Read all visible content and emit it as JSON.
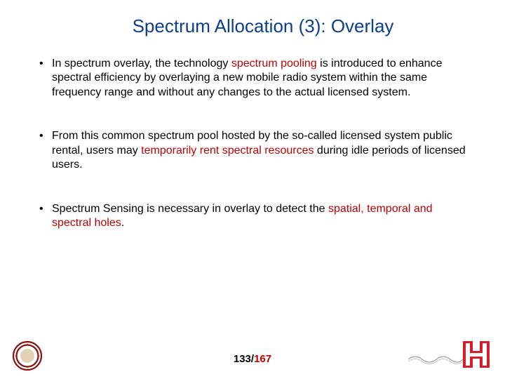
{
  "title": "Spectrum Allocation (3): Overlay",
  "bullets": [
    {
      "segments": [
        {
          "text": "In spectrum overlay, the technology ",
          "hl": false
        },
        {
          "text": "spectrum pooling",
          "hl": true
        },
        {
          "text": "  is introduced to enhance spectral efficiency by overlaying a new mobile radio system within the same frequency range and without any changes to the actual licensed system.",
          "hl": false
        }
      ]
    },
    {
      "segments": [
        {
          "text": "From this common spectrum pool hosted by the so-called licensed system public rental, users may ",
          "hl": false
        },
        {
          "text": "temporarily rent spectral resources ",
          "hl": true
        },
        {
          "text": "during idle periods of licensed users.",
          "hl": false
        }
      ]
    },
    {
      "segments": [
        {
          "text": "Spectrum Sensing is necessary in overlay to detect the ",
          "hl": false
        },
        {
          "text": "spatial, temporal and spectral holes",
          "hl": true
        },
        {
          "text": ".",
          "hl": false
        }
      ]
    }
  ],
  "page": {
    "current": "133",
    "separator": "/",
    "total": "167"
  },
  "colors": {
    "title": "#0b3e8c",
    "highlight": "#c00000",
    "text": "#000000",
    "background": "#ffffff"
  },
  "logos": {
    "left": {
      "name": "university-seal",
      "ring_color": "#8a1010",
      "inner_color": "#c49a5a"
    },
    "right": {
      "name": "uh-logo",
      "red": "#d81c2a",
      "white": "#ffffff",
      "wave_color": "#7c7c7c"
    }
  }
}
